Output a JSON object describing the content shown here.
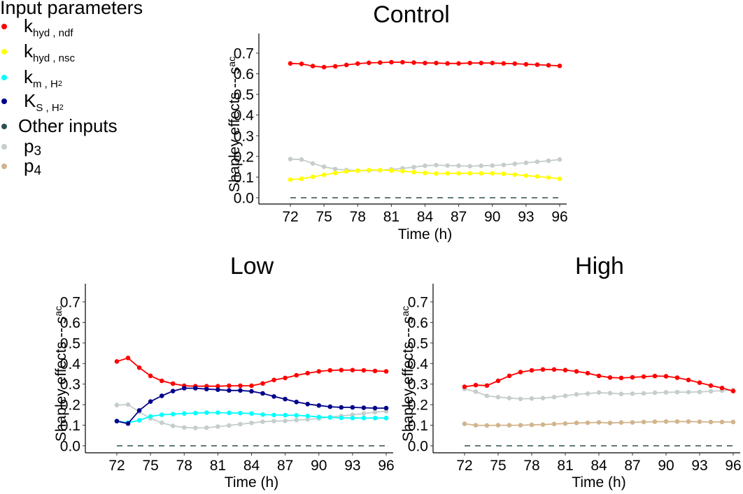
{
  "legend": {
    "title": "Input parameters",
    "items": [
      {
        "key": "khyd_ndf",
        "main": "k",
        "sub": "hyd , ndf",
        "sub2": "",
        "color": "#ff0000"
      },
      {
        "key": "khyd_nsc",
        "main": "k",
        "sub": "hyd , nsc",
        "sub2": "",
        "color": "#ffff00"
      },
      {
        "key": "km_H2",
        "main": "k",
        "sub": "m , H",
        "sub2": "2",
        "color": "#00ffff"
      },
      {
        "key": "KS_H2",
        "main": "K",
        "sub": "S , H",
        "sub2": "2",
        "color": "#00008b"
      },
      {
        "key": "other",
        "main": "Other inputs",
        "sub": "",
        "sub2": "",
        "color": "#2f4f4f"
      },
      {
        "key": "p3",
        "main": "p",
        "sub": "3",
        "sub2": "",
        "color": "#c5cdcd"
      },
      {
        "key": "p4",
        "main": "p",
        "sub": "4",
        "sub2": "",
        "color": "#d2b48c"
      }
    ]
  },
  "chart_data": [
    {
      "type": "line",
      "title": "Control",
      "xlabel": "Time (h)",
      "ylabel": "Shapley effects  --  s",
      "ylabel_sub": "ac",
      "xlim": [
        72,
        96
      ],
      "ylim": [
        0,
        0.7
      ],
      "xticks": [
        72,
        75,
        78,
        81,
        84,
        87,
        90,
        93,
        96
      ],
      "yticks": [
        "0.0",
        "0.1",
        "0.2",
        "0.3",
        "0.4",
        "0.5",
        "0.6",
        "0.7"
      ],
      "grid": false,
      "reference_line": {
        "y": 0,
        "style": "dashed",
        "color": "#2f4f4f"
      },
      "x": [
        72,
        73,
        74,
        75,
        76,
        77,
        78,
        79,
        80,
        81,
        82,
        83,
        84,
        85,
        86,
        87,
        88,
        89,
        90,
        91,
        92,
        93,
        94,
        95,
        96
      ],
      "series": [
        {
          "name": "khyd_ndf",
          "color": "#ff0000",
          "values": [
            0.65,
            0.648,
            0.637,
            0.632,
            0.636,
            0.643,
            0.649,
            0.653,
            0.654,
            0.656,
            0.656,
            0.654,
            0.652,
            0.652,
            0.65,
            0.65,
            0.652,
            0.652,
            0.652,
            0.65,
            0.649,
            0.646,
            0.644,
            0.641,
            0.638
          ]
        },
        {
          "name": "p3",
          "color": "#c5cdcd",
          "values": [
            0.187,
            0.185,
            0.166,
            0.15,
            0.139,
            0.134,
            0.131,
            0.132,
            0.133,
            0.137,
            0.142,
            0.148,
            0.155,
            0.158,
            0.156,
            0.155,
            0.153,
            0.155,
            0.156,
            0.159,
            0.164,
            0.169,
            0.174,
            0.179,
            0.185
          ]
        },
        {
          "name": "khyd_nsc",
          "color": "#ffff00",
          "values": [
            0.088,
            0.092,
            0.101,
            0.111,
            0.12,
            0.127,
            0.131,
            0.134,
            0.134,
            0.132,
            0.129,
            0.124,
            0.12,
            0.117,
            0.118,
            0.118,
            0.118,
            0.118,
            0.118,
            0.116,
            0.112,
            0.107,
            0.103,
            0.098,
            0.092
          ]
        }
      ]
    },
    {
      "type": "line",
      "title": "Low",
      "xlabel": "Time (h)",
      "ylabel": "Shapley effects  --  s",
      "ylabel_sub": "ac",
      "xlim": [
        72,
        96
      ],
      "ylim": [
        0,
        0.7
      ],
      "xticks": [
        72,
        75,
        78,
        81,
        84,
        87,
        90,
        93,
        96
      ],
      "yticks": [
        "0.0",
        "0.1",
        "0.2",
        "0.3",
        "0.4",
        "0.5",
        "0.6",
        "0.7"
      ],
      "grid": false,
      "reference_line": {
        "y": 0,
        "style": "dashed",
        "color": "#2f4f4f"
      },
      "x": [
        72,
        73,
        74,
        75,
        76,
        77,
        78,
        79,
        80,
        81,
        82,
        83,
        84,
        85,
        86,
        87,
        88,
        89,
        90,
        91,
        92,
        93,
        94,
        95,
        96
      ],
      "series": [
        {
          "name": "khyd_ndf",
          "color": "#ff0000",
          "values": [
            0.41,
            0.427,
            0.38,
            0.34,
            0.316,
            0.302,
            0.292,
            0.29,
            0.29,
            0.29,
            0.292,
            0.292,
            0.292,
            0.303,
            0.32,
            0.33,
            0.343,
            0.353,
            0.362,
            0.367,
            0.368,
            0.368,
            0.367,
            0.364,
            0.362
          ]
        },
        {
          "name": "p3",
          "color": "#c5cdcd",
          "values": [
            0.198,
            0.2,
            0.165,
            0.133,
            0.112,
            0.097,
            0.089,
            0.087,
            0.088,
            0.093,
            0.099,
            0.105,
            0.111,
            0.117,
            0.12,
            0.121,
            0.125,
            0.128,
            0.133,
            0.14,
            0.145,
            0.151,
            0.157,
            0.163,
            0.168
          ]
        },
        {
          "name": "km_H2",
          "color": "#00ffff",
          "values": [
            0.12,
            0.112,
            0.124,
            0.143,
            0.151,
            0.154,
            0.157,
            0.159,
            0.161,
            0.161,
            0.16,
            0.159,
            0.157,
            0.152,
            0.15,
            0.149,
            0.148,
            0.145,
            0.14,
            0.138,
            0.136,
            0.135,
            0.135,
            0.135,
            0.135
          ]
        },
        {
          "name": "KS_H2",
          "color": "#00008b",
          "values": [
            0.12,
            0.108,
            0.172,
            0.215,
            0.243,
            0.266,
            0.28,
            0.28,
            0.276,
            0.273,
            0.269,
            0.269,
            0.265,
            0.255,
            0.24,
            0.227,
            0.213,
            0.203,
            0.196,
            0.19,
            0.187,
            0.187,
            0.185,
            0.183,
            0.183
          ]
        }
      ]
    },
    {
      "type": "line",
      "title": "High",
      "xlabel": "Time (h)",
      "ylabel": "Shapley effects  --  s",
      "ylabel_sub": "ac",
      "xlim": [
        72,
        96
      ],
      "ylim": [
        0,
        0.7
      ],
      "xticks": [
        72,
        75,
        78,
        81,
        84,
        87,
        90,
        93,
        96
      ],
      "yticks": [
        "0.0",
        "0.1",
        "0.2",
        "0.3",
        "0.4",
        "0.5",
        "0.6",
        "0.7"
      ],
      "grid": false,
      "reference_line": {
        "y": 0,
        "style": "dashed",
        "color": "#2f4f4f"
      },
      "x": [
        72,
        73,
        74,
        75,
        76,
        77,
        78,
        79,
        80,
        81,
        82,
        83,
        84,
        85,
        86,
        87,
        88,
        89,
        90,
        91,
        92,
        93,
        94,
        95,
        96
      ],
      "series": [
        {
          "name": "p3",
          "color": "#c5cdcd",
          "values": [
            0.277,
            0.263,
            0.243,
            0.237,
            0.232,
            0.228,
            0.23,
            0.232,
            0.237,
            0.243,
            0.25,
            0.254,
            0.259,
            0.256,
            0.252,
            0.253,
            0.255,
            0.258,
            0.26,
            0.261,
            0.261,
            0.262,
            0.265,
            0.268,
            0.272
          ]
        },
        {
          "name": "khyd_ndf",
          "color": "#ff0000",
          "values": [
            0.287,
            0.295,
            0.293,
            0.316,
            0.34,
            0.358,
            0.367,
            0.371,
            0.371,
            0.368,
            0.362,
            0.353,
            0.34,
            0.332,
            0.33,
            0.333,
            0.336,
            0.339,
            0.338,
            0.331,
            0.32,
            0.307,
            0.293,
            0.281,
            0.266
          ]
        },
        {
          "name": "p4",
          "color": "#d2b48c",
          "values": [
            0.107,
            0.1,
            0.099,
            0.1,
            0.1,
            0.1,
            0.102,
            0.103,
            0.106,
            0.108,
            0.111,
            0.112,
            0.114,
            0.111,
            0.113,
            0.114,
            0.116,
            0.117,
            0.118,
            0.118,
            0.118,
            0.117,
            0.116,
            0.116,
            0.116
          ]
        }
      ]
    }
  ]
}
